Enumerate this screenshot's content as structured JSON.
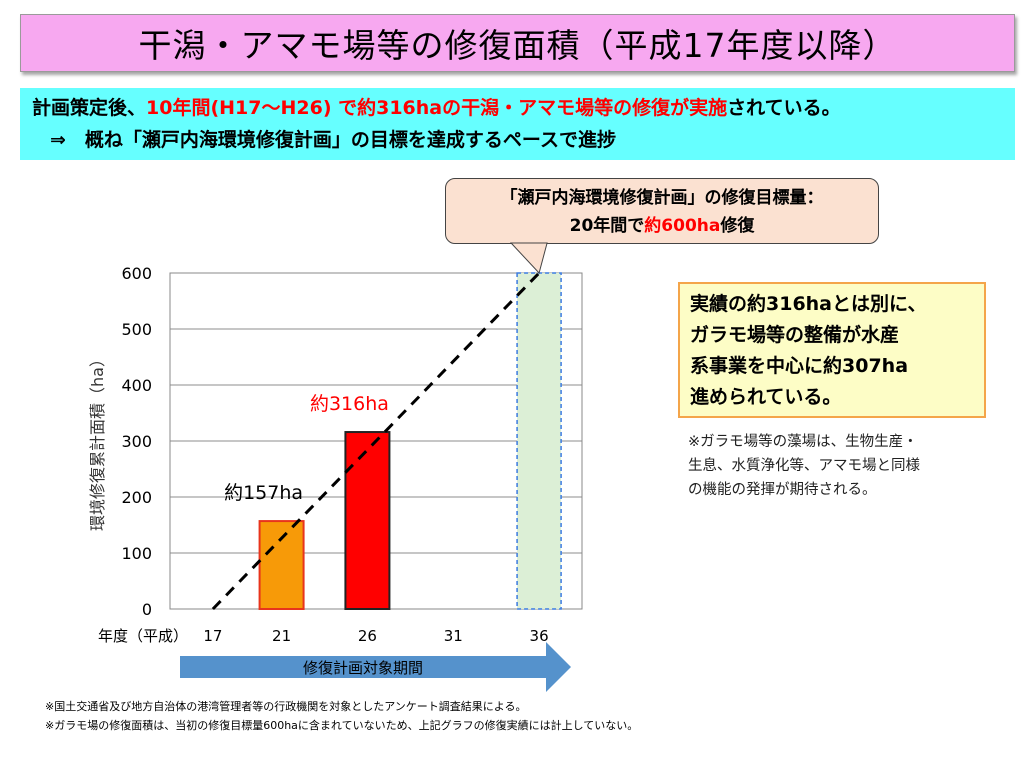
{
  "title": "干潟・アマモ場等の修復面積（平成17年度以降）",
  "summary": {
    "line1_a": "計画策定後、",
    "line1_b": "10年間(H17～H26) で約316haの干潟・アマモ場等の修復が実施",
    "line1_c": "されている。",
    "line2": "⇒　概ね「瀬戸内海環境修復計画」の目標を達成するペースで進捗"
  },
  "callout": {
    "line1": "「瀬戸内海環境修復計画」の修復目標量：",
    "line2_a": "20年間で",
    "line2_b": "約600ha",
    "line2_c": "修復"
  },
  "right_box": {
    "line1": "実績の約316haとは別に、",
    "line2": "ガラモ場等の整備が水産",
    "line3": "系事業を中心に約307ha",
    "line4": "進められている。"
  },
  "note": {
    "line1": "※ガラモ場等の藻場は、生物生産・",
    "line2": "生息、水質浄化等、アマモ場と同様",
    "line3": "の機能の発揮が期待される。"
  },
  "footnotes": {
    "line1": "※国土交通省及び地方自治体の港湾管理者等の行政機関を対象としたアンケート調査結果による。",
    "line2": "※ガラモ場の修復面積は、当初の修復目標量600haに含まれていないため、上記グラフの修復実績には計上していない。"
  },
  "arrow_label": "修復計画対象期間",
  "chart_data": {
    "type": "bar",
    "ylabel": "環境修復累計面積（ha）",
    "xlabel": "年度（平成）",
    "x_ticks": [
      "17",
      "21",
      "26",
      "31",
      "36"
    ],
    "ylim": [
      0,
      600
    ],
    "y_ticks": [
      "0",
      "100",
      "200",
      "300",
      "400",
      "500",
      "600"
    ],
    "bars": [
      {
        "x": 21,
        "value": 157,
        "label": "約157ha",
        "color": "#f79a08",
        "border": "#e8341c",
        "label_color": "#000000"
      },
      {
        "x": 26,
        "value": 316,
        "label": "約316ha",
        "color": "#ff0000",
        "border": "#222222",
        "label_color": "#ff0000"
      },
      {
        "x": 36,
        "value": 600,
        "label": "",
        "color": "#dcefd6",
        "border": "#3b7be0",
        "label_color": "#000000"
      }
    ],
    "target_line": {
      "x_start": 17,
      "y_start": 0,
      "x_end": 36,
      "y_end": 600,
      "style": "dashed"
    },
    "xlim": [
      14.5,
      38.5
    ],
    "grid": "horizontal"
  }
}
